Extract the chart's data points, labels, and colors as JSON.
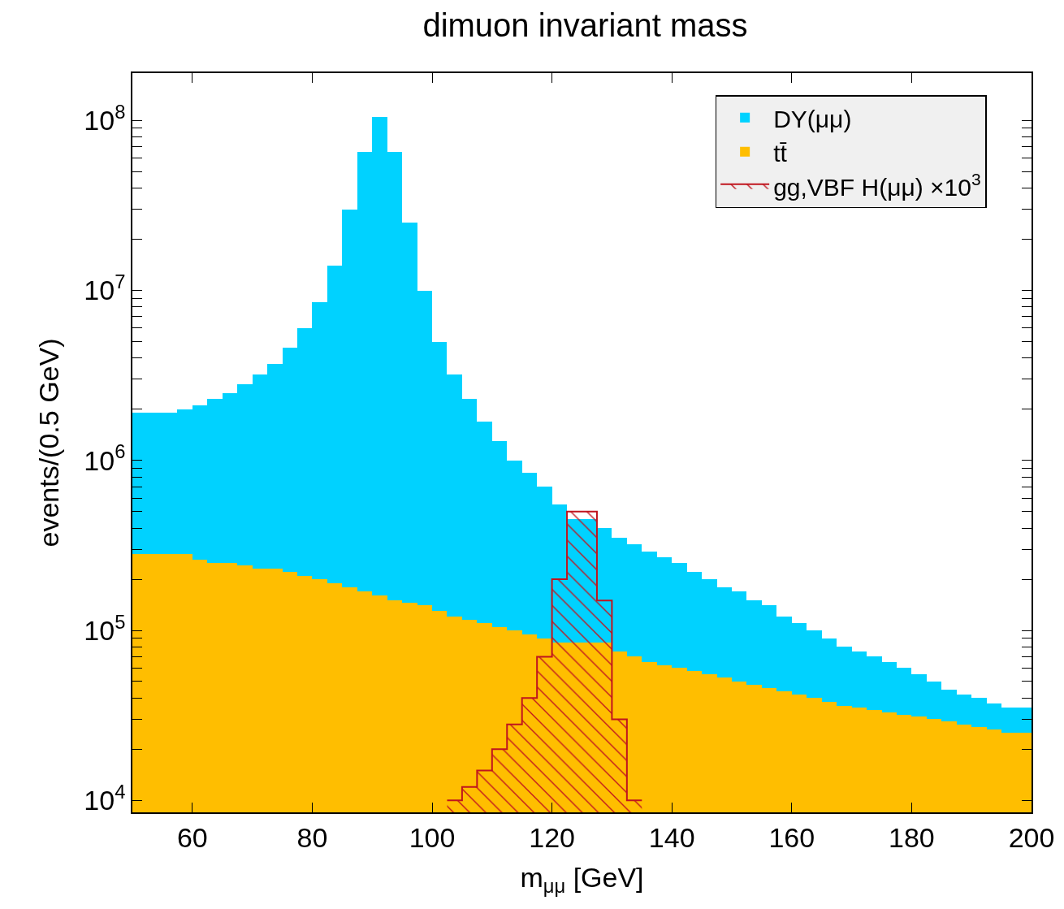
{
  "chart_data": {
    "type": "bar",
    "title": "dimuon invariant mass",
    "xlabel": "m$_{μμ}$ [GeV]",
    "ylabel": "events/(0.5 GeV)",
    "log": "y",
    "grid": false,
    "legend": "top right",
    "xlim": [
      50,
      200
    ],
    "ylim": [
      8500,
      190000000
    ],
    "xticks": [
      60,
      80,
      100,
      120,
      140,
      160,
      180,
      200
    ],
    "yticks": [
      {
        "value": 10000,
        "label": "10$^{4}$"
      },
      {
        "value": 20000,
        "label": null
      },
      {
        "value": 30000,
        "label": null
      },
      {
        "value": 40000,
        "label": null
      },
      {
        "value": 50000,
        "label": null
      },
      {
        "value": 60000,
        "label": null
      },
      {
        "value": 70000,
        "label": null
      },
      {
        "value": 80000,
        "label": null
      },
      {
        "value": 90000,
        "label": null
      },
      {
        "value": 100000,
        "label": "10$^{5}$"
      },
      {
        "value": 200000,
        "label": null
      },
      {
        "value": 300000,
        "label": null
      },
      {
        "value": 400000,
        "label": null
      },
      {
        "value": 500000,
        "label": null
      },
      {
        "value": 600000,
        "label": null
      },
      {
        "value": 700000,
        "label": null
      },
      {
        "value": 800000,
        "label": null
      },
      {
        "value": 900000,
        "label": null
      },
      {
        "value": 1000000,
        "label": "10$^{6}$"
      },
      {
        "value": 2000000,
        "label": null
      },
      {
        "value": 3000000,
        "label": null
      },
      {
        "value": 4000000,
        "label": null
      },
      {
        "value": 5000000,
        "label": null
      },
      {
        "value": 6000000,
        "label": null
      },
      {
        "value": 7000000,
        "label": null
      },
      {
        "value": 8000000,
        "label": null
      },
      {
        "value": 9000000,
        "label": null
      },
      {
        "value": 10000000,
        "label": "10$^{7}$"
      },
      {
        "value": 20000000,
        "label": null
      },
      {
        "value": 30000000,
        "label": null
      },
      {
        "value": 40000000,
        "label": null
      },
      {
        "value": 50000000,
        "label": null
      },
      {
        "value": 60000000,
        "label": null
      },
      {
        "value": 70000000,
        "label": null
      },
      {
        "value": 80000000,
        "label": null
      },
      {
        "value": 90000000,
        "label": null
      },
      {
        "value": 100000000,
        "label": "10$^{8}$"
      }
    ],
    "x": [
      51.25,
      53.75,
      56.25,
      58.75,
      61.25,
      63.75,
      66.25,
      68.75,
      71.25,
      73.75,
      76.25,
      78.75,
      81.25,
      83.75,
      86.25,
      88.75,
      91.25,
      93.75,
      96.25,
      98.75,
      101.25,
      103.75,
      106.25,
      108.75,
      111.25,
      113.75,
      116.25,
      118.75,
      121.25,
      123.75,
      126.25,
      128.75,
      131.25,
      133.75,
      136.25,
      138.75,
      141.25,
      143.75,
      146.25,
      148.75,
      151.25,
      153.75,
      156.25,
      158.75,
      161.25,
      163.75,
      166.25,
      168.75,
      171.25,
      173.75,
      176.25,
      178.75,
      181.25,
      183.75,
      186.25,
      188.75,
      191.25,
      193.75,
      196.25,
      198.75
    ],
    "stacked": true,
    "series": [
      {
        "name": "tt̄",
        "color": "#ffbe00",
        "values": [
          280000,
          280000,
          280000,
          280000,
          260000,
          250000,
          250000,
          240000,
          230000,
          230000,
          220000,
          210000,
          200000,
          190000,
          180000,
          170000,
          160000,
          150000,
          145000,
          140000,
          130000,
          120000,
          115000,
          110000,
          105000,
          100000,
          95000,
          90000,
          85000,
          85000,
          85000,
          85000,
          75000,
          70000,
          65000,
          62000,
          60000,
          58000,
          55000,
          53000,
          50000,
          48000,
          46000,
          44000,
          42000,
          40000,
          38000,
          36000,
          35000,
          34000,
          33000,
          32000,
          31000,
          30000,
          29000,
          28000,
          27000,
          26000,
          25000,
          25000
        ]
      },
      {
        "name": "DY(μμ)",
        "color": "#00d2ff",
        "values": [
          1620000,
          1620000,
          1620000,
          1720000,
          1840000,
          2050000,
          2250000,
          2560000,
          2970000,
          3470000,
          4380000,
          5790000,
          8300000,
          13810000,
          29820000,
          64830000,
          104840000,
          64850000,
          24855000,
          9860000,
          4870000,
          3080000,
          2185000,
          1590000,
          1195000,
          900000,
          755000,
          610000,
          465000,
          365000,
          365000,
          315000,
          275000,
          250000,
          225000,
          208000,
          190000,
          162000,
          145000,
          127000,
          120000,
          102000,
          94000,
          76000,
          68000,
          60000,
          52000,
          44000,
          40000,
          36000,
          32000,
          28000,
          24000,
          20000,
          16000,
          14000,
          13000,
          11000,
          10000,
          10000
        ]
      },
      {
        "name": "gg,VBF H(μμ) ×10$^{3}$",
        "type": "area",
        "color": "#c0141e",
        "x": [
          102.5,
          105,
          105,
          107.5,
          107.5,
          110,
          110,
          112.5,
          112.5,
          115,
          115,
          117.5,
          117.5,
          120,
          120,
          122.5,
          122.5,
          127.5,
          127.5,
          130,
          130,
          132.5,
          132.5,
          135
        ],
        "values": [
          10000,
          10000,
          12000,
          12000,
          15000,
          15000,
          20000,
          20000,
          28000,
          28000,
          40000,
          40000,
          70000,
          70000,
          200000,
          200000,
          500000,
          500000,
          150000,
          150000,
          30000,
          30000,
          10000,
          10000
        ]
      }
    ]
  }
}
